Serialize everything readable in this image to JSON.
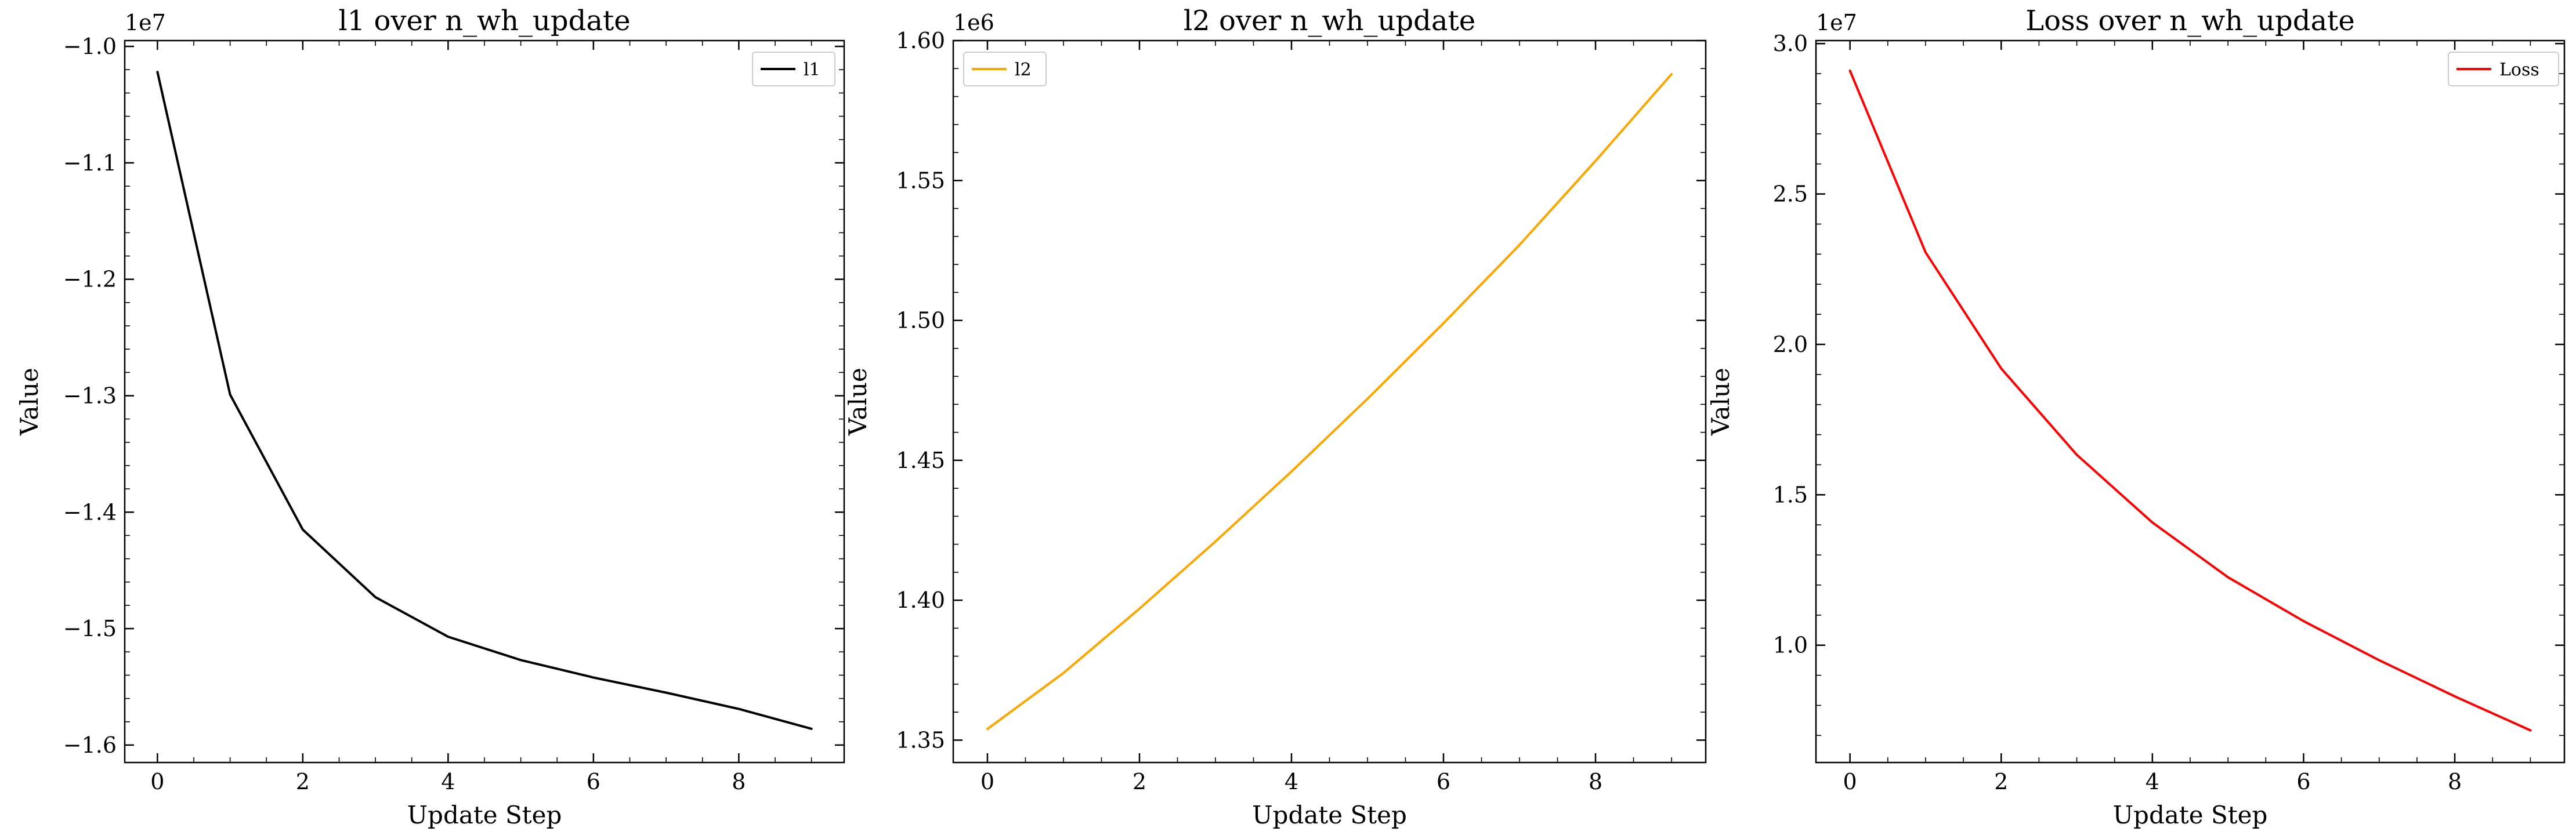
{
  "chart_data": [
    {
      "type": "line",
      "title": "l1 over n_wh_update",
      "xlabel": "Update Step",
      "ylabel": "Value",
      "offset_label": "1e7",
      "x": [
        0,
        1,
        2,
        3,
        4,
        5,
        6,
        7,
        8,
        9
      ],
      "series": [
        {
          "name": "l1",
          "color": "#000000",
          "values": [
            -10220000,
            -12990000,
            -14150000,
            -14730000,
            -15070000,
            -15270000,
            -15420000,
            -15550000,
            -15690000,
            -15860000
          ]
        }
      ],
      "xlim": [
        -0.45,
        9.45
      ],
      "ylim": [
        -16150000,
        -9950000
      ],
      "xticks": [
        0,
        2,
        4,
        6,
        8
      ],
      "xtick_labels": [
        "0",
        "2",
        "4",
        "6",
        "8"
      ],
      "yticks": [
        -10000000,
        -11000000,
        -12000000,
        -13000000,
        -14000000,
        -15000000,
        -16000000
      ],
      "ytick_labels": [
        "−1.0",
        "−1.1",
        "−1.2",
        "−1.3",
        "−1.4",
        "−1.5",
        "−1.6"
      ],
      "ytick_minor_step": 200000,
      "legend": "top-right"
    },
    {
      "type": "line",
      "title": "l2 over n_wh_update",
      "xlabel": "Update Step",
      "ylabel": "Value",
      "offset_label": "1e6",
      "x": [
        0,
        1,
        2,
        3,
        4,
        5,
        6,
        7,
        8,
        9
      ],
      "series": [
        {
          "name": "l2",
          "color": "#ffa500",
          "values": [
            1354000,
            1374000,
            1397000,
            1421000,
            1446000,
            1472000,
            1499000,
            1527000,
            1557000,
            1588000
          ]
        }
      ],
      "xlim": [
        -0.45,
        9.45
      ],
      "ylim": [
        1342000,
        1600000
      ],
      "xticks": [
        0,
        2,
        4,
        6,
        8
      ],
      "xtick_labels": [
        "0",
        "2",
        "4",
        "6",
        "8"
      ],
      "yticks": [
        1350000,
        1400000,
        1450000,
        1500000,
        1550000,
        1600000
      ],
      "ytick_labels": [
        "1.35",
        "1.40",
        "1.45",
        "1.50",
        "1.55",
        "1.60"
      ],
      "ytick_minor_step": 10000,
      "legend": "top-left"
    },
    {
      "type": "line",
      "title": "Loss over n_wh_update",
      "xlabel": "Update Step",
      "ylabel": "Value",
      "offset_label": "1e7",
      "x": [
        0,
        1,
        2,
        3,
        4,
        5,
        6,
        7,
        8,
        9
      ],
      "series": [
        {
          "name": "Loss",
          "color": "#ff0000",
          "values": [
            29100000,
            23060000,
            19200000,
            16330000,
            14080000,
            12260000,
            10800000,
            9500000,
            8300000,
            7170000
          ]
        }
      ],
      "xlim": [
        -0.45,
        9.45
      ],
      "ylim": [
        6100000,
        30100000
      ],
      "xticks": [
        0,
        2,
        4,
        6,
        8
      ],
      "xtick_labels": [
        "0",
        "2",
        "4",
        "6",
        "8"
      ],
      "yticks": [
        10000000,
        15000000,
        20000000,
        25000000,
        30000000
      ],
      "ytick_labels": [
        "1.0",
        "1.5",
        "2.0",
        "2.5",
        "3.0"
      ],
      "ytick_minor_step": 1000000,
      "legend": "top-right"
    }
  ]
}
